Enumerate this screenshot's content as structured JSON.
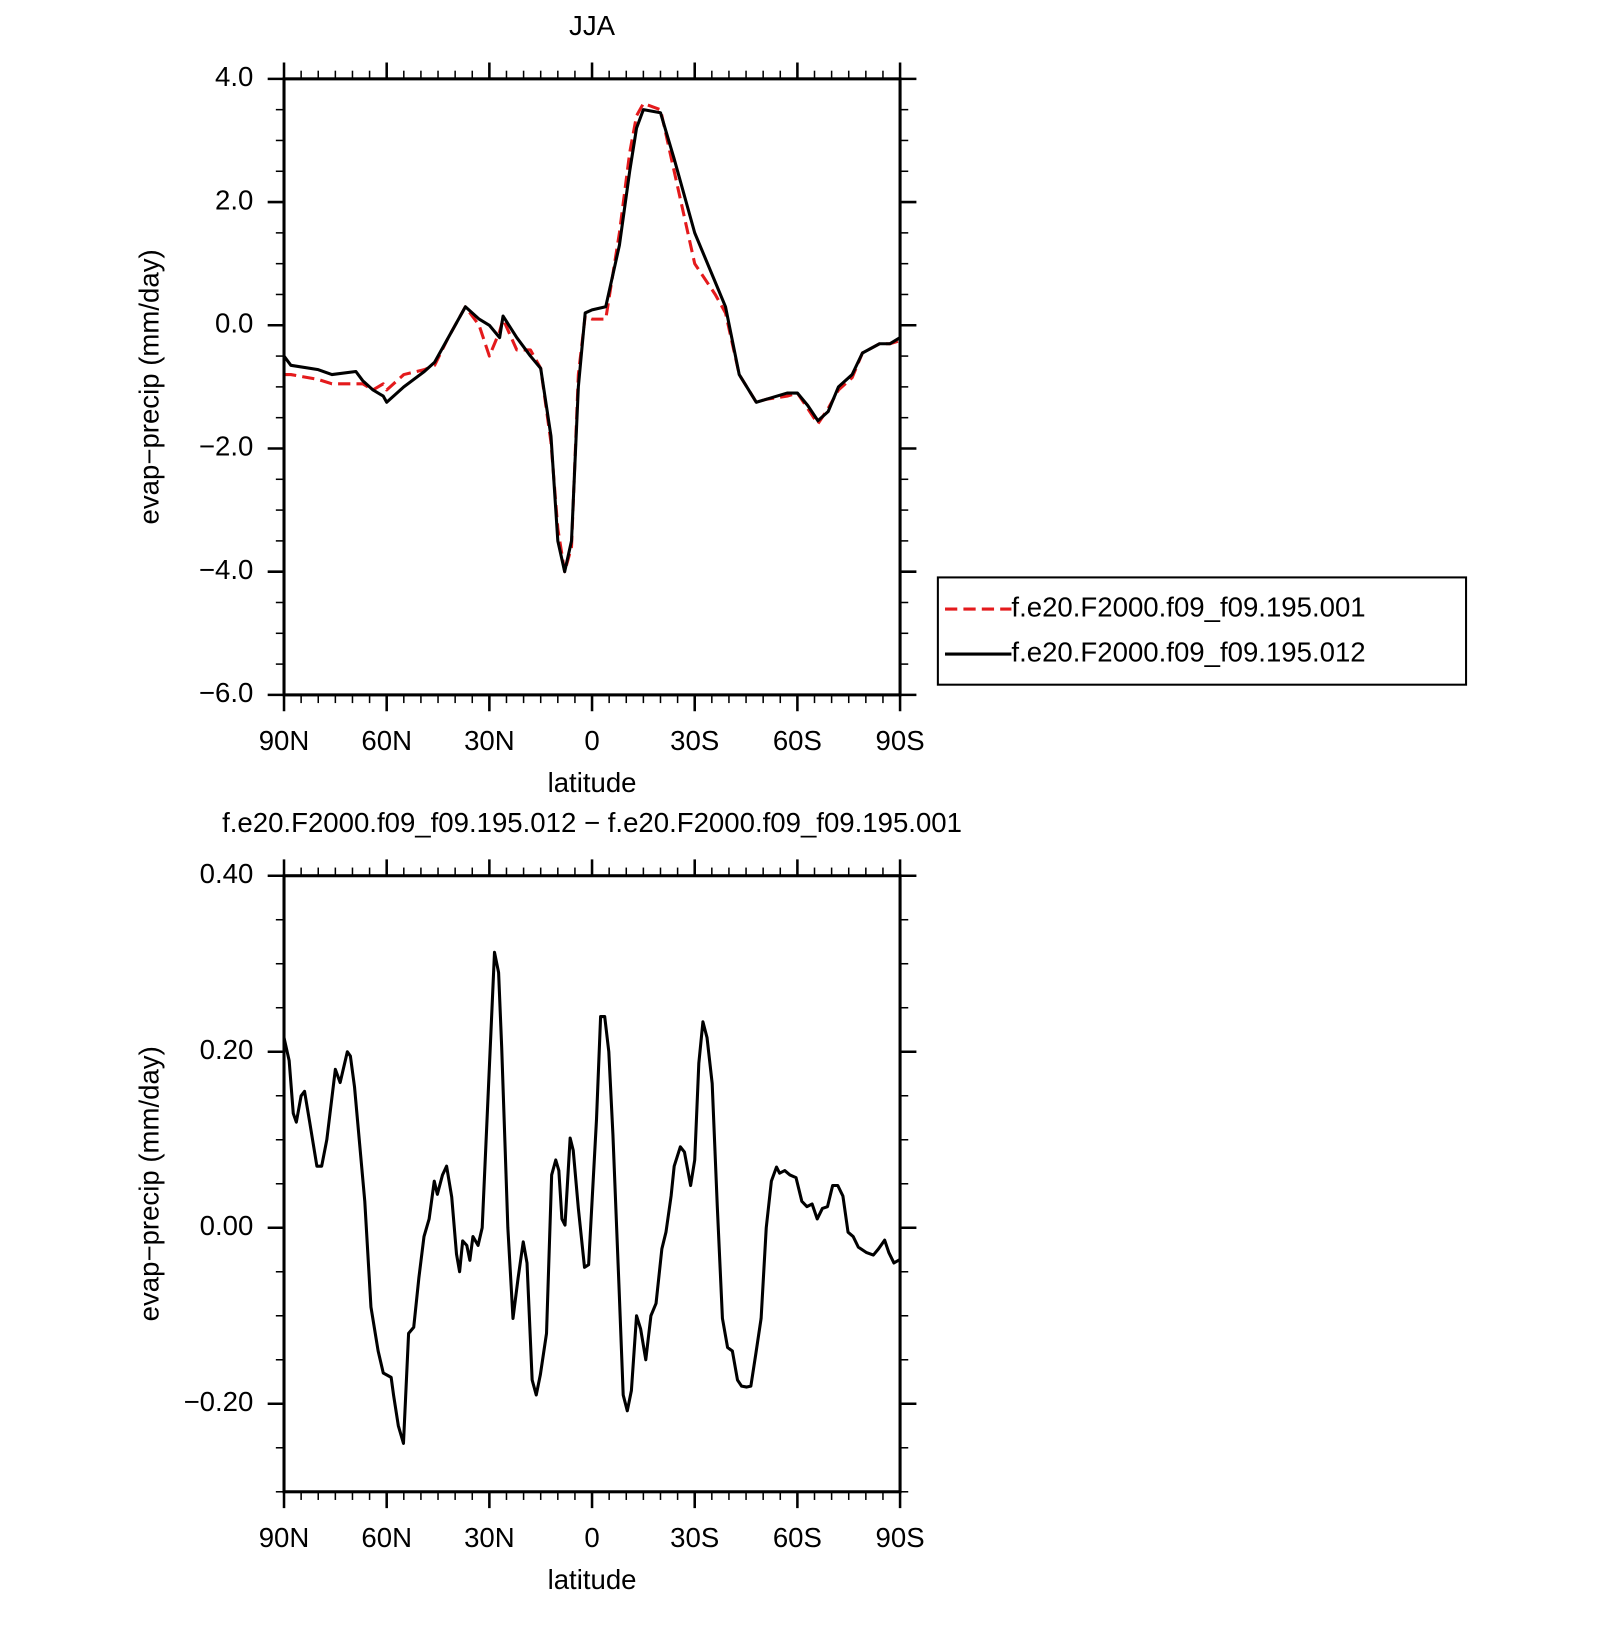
{
  "chart_data": [
    {
      "type": "line",
      "title": "JJA",
      "xlabel": "latitude",
      "ylabel": "evap−precip (mm/day)",
      "x": [
        90,
        88,
        80,
        76,
        69,
        67,
        64,
        61,
        60,
        55,
        49,
        46,
        42,
        37,
        33,
        30,
        27,
        26,
        22,
        18,
        15,
        12,
        10,
        8,
        6,
        4,
        2,
        0,
        -4,
        -8,
        -11,
        -13,
        -15,
        -20,
        -24,
        -30,
        -36,
        -39,
        -43,
        -48,
        -51,
        -57,
        -60,
        -63,
        -66,
        -69,
        -72,
        -76,
        -79,
        -84,
        -87,
        -90
      ],
      "series": [
        {
          "name": "f.e20.F2000.f09_f09.195.001",
          "color": "#e41a1c",
          "line_style": "dashed",
          "values": [
            -0.8,
            -0.8,
            -0.88,
            -0.95,
            -0.95,
            -0.95,
            -1.05,
            -0.95,
            -1.05,
            -0.8,
            -0.72,
            -0.65,
            -0.2,
            0.3,
            0.0,
            -0.5,
            -0.1,
            0.1,
            -0.4,
            -0.4,
            -0.7,
            -1.9,
            -3.3,
            -4.0,
            -3.6,
            -0.8,
            0.15,
            0.1,
            0.1,
            1.5,
            2.8,
            3.4,
            3.6,
            3.5,
            2.5,
            1.0,
            0.5,
            0.2,
            -0.8,
            -1.25,
            -1.2,
            -1.15,
            -1.1,
            -1.35,
            -1.6,
            -1.35,
            -1.05,
            -0.85,
            -0.45,
            -0.3,
            -0.3,
            -0.25
          ]
        },
        {
          "name": "f.e20.F2000.f09_f09.195.012",
          "color": "#000000",
          "line_style": "solid",
          "values": [
            -0.5,
            -0.65,
            -0.72,
            -0.8,
            -0.75,
            -0.9,
            -1.05,
            -1.15,
            -1.25,
            -1.0,
            -0.75,
            -0.6,
            -0.2,
            0.3,
            0.1,
            0.0,
            -0.2,
            0.15,
            -0.2,
            -0.5,
            -0.7,
            -1.8,
            -3.5,
            -4.0,
            -3.5,
            -1.0,
            0.2,
            0.25,
            0.3,
            1.3,
            2.5,
            3.2,
            3.5,
            3.45,
            2.7,
            1.5,
            0.7,
            0.3,
            -0.8,
            -1.25,
            -1.2,
            -1.1,
            -1.1,
            -1.3,
            -1.55,
            -1.4,
            -1.0,
            -0.8,
            -0.45,
            -0.3,
            -0.3,
            -0.2
          ]
        }
      ],
      "xlim": [
        90,
        -90
      ],
      "xticks": [
        {
          "value": 90,
          "label": "90N"
        },
        {
          "value": 60,
          "label": "60N"
        },
        {
          "value": 30,
          "label": "30N"
        },
        0,
        {
          "value": -30,
          "label": "30S"
        },
        {
          "value": -60,
          "label": "60S"
        },
        {
          "value": -90,
          "label": "90S"
        }
      ],
      "ylim": [
        -6,
        4
      ],
      "yticks": [
        {
          "value": 4,
          "label": "4.0"
        },
        {
          "value": 2,
          "label": "2.0"
        },
        {
          "value": 0,
          "label": "0.0"
        },
        {
          "value": -2,
          "label": "−2.0"
        },
        {
          "value": -4,
          "label": "−4.0"
        },
        {
          "value": -6,
          "label": "−6.0"
        }
      ],
      "legend": "right"
    },
    {
      "type": "line",
      "title": "f.e20.F2000.f09_f09.195.012 − f.e20.F2000.f09_f09.195.001",
      "xlabel": "latitude",
      "ylabel": "evap−precip (mm/day)",
      "x": [
        90,
        88.5,
        87.3,
        86.4,
        85,
        84,
        82.5,
        80.4,
        79,
        77.5,
        75,
        73.6,
        71.5,
        70.6,
        69.4,
        66.4,
        64.6,
        62.5,
        61,
        58.7,
        58,
        56.6,
        55.1,
        53.6,
        52.1,
        50.6,
        49.1,
        47.6,
        46.1,
        45.2,
        43.7,
        42.5,
        41,
        39.6,
        38.7,
        37.8,
        36.6,
        35.7,
        34.8,
        33.3,
        32.1,
        30.6,
        28.5,
        27.3,
        26.4,
        24.6,
        23.1,
        21.6,
        20.1,
        19,
        17.5,
        16.3,
        15.1,
        13.3,
        11.8,
        10.6,
        9.7,
        8.8,
        7.9,
        6.4,
        5.5,
        4,
        2.2,
        1,
        -1.3,
        -2.5,
        -3.7,
        -4.9,
        -6.1,
        -7.9,
        -9.1,
        -10.3,
        -11.5,
        -13,
        -14.2,
        -15.7,
        -17.2,
        -18.7,
        -20.4,
        -21.6,
        -23.1,
        -24,
        -25.8,
        -27,
        -28.8,
        -30,
        -31.2,
        -32.4,
        -33.6,
        -35.1,
        -36.6,
        -38.1,
        -39.6,
        -41,
        -42.5,
        -43.7,
        -45.2,
        -46.4,
        -47.9,
        -49.4,
        -50.9,
        -52.4,
        -53.9,
        -54.8,
        -56.3,
        -57.8,
        -59.6,
        -61.3,
        -62.8,
        -64.3,
        -65.8,
        -67.3,
        -68.8,
        -70.3,
        -71.8,
        -73.3,
        -74.8,
        -76.3,
        -77.8,
        -80.1,
        -82.2,
        -83.7,
        -85.5,
        -86.7,
        -88.2,
        -90
      ],
      "series": [
        {
          "color": "#000000",
          "line_style": "solid",
          "values": [
            0.216,
            0.19,
            0.13,
            0.12,
            0.15,
            0.155,
            0.12,
            0.07,
            0.07,
            0.1,
            0.18,
            0.165,
            0.2,
            0.195,
            0.16,
            0.03,
            -0.09,
            -0.14,
            -0.165,
            -0.17,
            -0.19,
            -0.225,
            -0.245,
            -0.12,
            -0.113,
            -0.057,
            -0.01,
            0.01,
            0.053,
            0.038,
            0.06,
            0.07,
            0.035,
            -0.03,
            -0.05,
            -0.015,
            -0.02,
            -0.037,
            -0.01,
            -0.02,
            0.0,
            0.13,
            0.313,
            0.29,
            0.205,
            0.0,
            -0.103,
            -0.057,
            -0.016,
            -0.04,
            -0.173,
            -0.19,
            -0.167,
            -0.12,
            0.06,
            0.077,
            0.065,
            0.01,
            0.003,
            0.102,
            0.088,
            0.022,
            -0.045,
            -0.042,
            0.123,
            0.24,
            0.24,
            0.2,
            0.106,
            -0.069,
            -0.19,
            -0.208,
            -0.185,
            -0.1,
            -0.115,
            -0.15,
            -0.1,
            -0.086,
            -0.024,
            -0.005,
            0.036,
            0.07,
            0.092,
            0.086,
            0.048,
            0.077,
            0.187,
            0.234,
            0.216,
            0.164,
            0.024,
            -0.103,
            -0.136,
            -0.14,
            -0.173,
            -0.18,
            -0.181,
            -0.18,
            -0.142,
            -0.103,
            0.0,
            0.053,
            0.069,
            0.062,
            0.065,
            0.06,
            0.057,
            0.03,
            0.024,
            0.027,
            0.01,
            0.022,
            0.024,
            0.048,
            0.048,
            0.036,
            -0.005,
            -0.01,
            -0.022,
            -0.028,
            -0.031,
            -0.024,
            -0.014,
            -0.028,
            -0.04,
            -0.036
          ]
        }
      ],
      "xlim": [
        90,
        -90
      ],
      "xticks": [
        {
          "value": 90,
          "label": "90N"
        },
        {
          "value": 60,
          "label": "60N"
        },
        {
          "value": 30,
          "label": "30N"
        },
        0,
        {
          "value": -30,
          "label": "30S"
        },
        {
          "value": -60,
          "label": "60S"
        },
        {
          "value": -90,
          "label": "90S"
        }
      ],
      "ylim": [
        -0.3,
        0.4
      ],
      "yticks": [
        {
          "value": 0.4,
          "label": "0.40"
        },
        {
          "value": 0.2,
          "label": "0.20"
        },
        {
          "value": 0,
          "label": "0.00"
        },
        {
          "value": -0.2,
          "label": "−0.20"
        }
      ]
    }
  ]
}
